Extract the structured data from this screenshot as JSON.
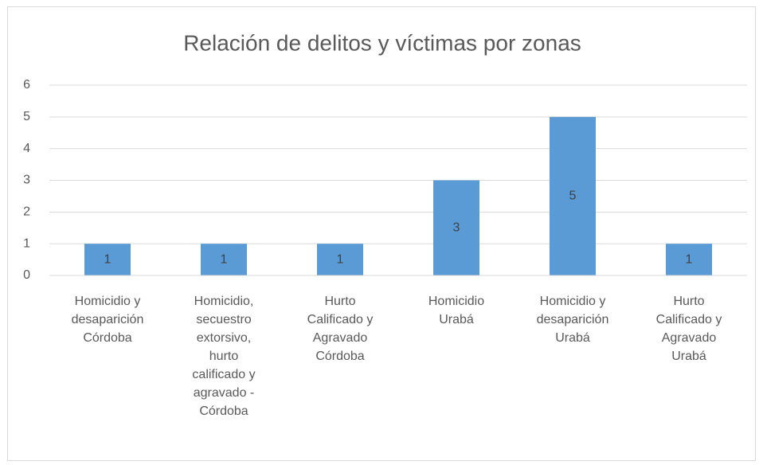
{
  "chart_data": {
    "type": "bar",
    "title": "Relación de delitos y víctimas por zonas",
    "categories": [
      [
        "Homicidio y",
        "desaparición",
        "Córdoba"
      ],
      [
        "Homicidio,",
        "secuestro",
        "extorsivo,",
        "hurto",
        "calificado y",
        "agravado -",
        "Córdoba"
      ],
      [
        "Hurto",
        "Calificado y",
        "Agravado",
        "Córdoba"
      ],
      [
        "Homicidio",
        "Urabá"
      ],
      [
        "Homicidio y",
        "desaparición",
        "Urabá"
      ],
      [
        "Hurto",
        "Calificado y",
        "Agravado",
        "Urabá"
      ]
    ],
    "values": [
      1,
      1,
      1,
      3,
      5,
      1
    ],
    "color": "#5b9bd5",
    "ylim": [
      0,
      6
    ],
    "yticks": [
      0,
      1,
      2,
      3,
      4,
      5,
      6
    ],
    "grid": true,
    "data_labels": true
  }
}
